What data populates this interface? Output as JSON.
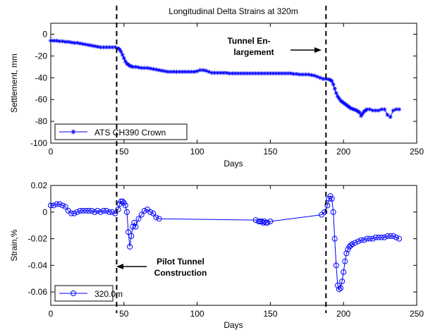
{
  "chart_data": [
    {
      "type": "line",
      "title": "Longitudinal Delta Strains at 320m",
      "xlabel": "Days",
      "ylabel": "Settlement, mm",
      "xlim": [
        0,
        250
      ],
      "ylim": [
        -100,
        10
      ],
      "xticks": [
        0,
        50,
        100,
        150,
        200,
        250
      ],
      "yticks": [
        0,
        -20,
        -40,
        -60,
        -80,
        -100
      ],
      "legend_position": "bottom-left",
      "series": [
        {
          "name": "ATS CH390 Crown",
          "color": "#0000ff",
          "marker": "asterisk",
          "x": [
            0,
            2,
            4,
            6,
            8,
            10,
            12,
            14,
            16,
            18,
            20,
            22,
            24,
            26,
            28,
            30,
            32,
            34,
            36,
            38,
            40,
            42,
            44,
            46,
            47,
            48,
            49,
            50,
            51,
            52,
            53,
            54,
            55,
            56,
            58,
            60,
            62,
            64,
            66,
            68,
            70,
            72,
            74,
            76,
            78,
            80,
            82,
            84,
            86,
            88,
            90,
            92,
            94,
            96,
            98,
            100,
            102,
            104,
            106,
            108,
            110,
            112,
            114,
            116,
            118,
            120,
            122,
            124,
            126,
            128,
            130,
            132,
            134,
            136,
            138,
            140,
            142,
            144,
            146,
            148,
            150,
            152,
            154,
            156,
            158,
            160,
            162,
            164,
            166,
            168,
            170,
            172,
            174,
            176,
            178,
            180,
            182,
            184,
            186,
            188,
            190,
            191,
            192,
            193,
            194,
            195,
            196,
            197,
            198,
            199,
            200,
            201,
            202,
            203,
            204,
            205,
            206,
            207,
            208,
            209,
            210,
            211,
            212,
            213,
            214,
            215,
            216,
            218,
            220,
            222,
            224,
            226,
            228,
            230,
            232,
            234,
            236,
            238
          ],
          "y": [
            -6,
            -6,
            -6,
            -6.5,
            -6.5,
            -7,
            -7,
            -7.5,
            -8,
            -8,
            -8.5,
            -9,
            -9.5,
            -10,
            -10.5,
            -11,
            -11.5,
            -12,
            -12,
            -12,
            -12,
            -12,
            -12,
            -13,
            -14,
            -16,
            -19,
            -22,
            -25,
            -27,
            -28,
            -29,
            -29.5,
            -30,
            -30,
            -30.5,
            -31,
            -31,
            -31,
            -31.5,
            -32,
            -32.5,
            -33,
            -33.5,
            -34,
            -34.5,
            -34.5,
            -34.5,
            -34.5,
            -34.5,
            -34.5,
            -34.5,
            -34.5,
            -34.5,
            -34.5,
            -34,
            -33,
            -33,
            -33.5,
            -34.5,
            -35.5,
            -35.5,
            -35.5,
            -35.5,
            -35.5,
            -35.5,
            -36,
            -36,
            -36,
            -36,
            -36,
            -36,
            -36,
            -36,
            -36,
            -36,
            -36,
            -36,
            -36,
            -36,
            -36,
            -36,
            -36,
            -36,
            -36,
            -36,
            -36,
            -36,
            -36.5,
            -36.5,
            -37,
            -37,
            -37,
            -37,
            -37.5,
            -38,
            -39,
            -40,
            -41,
            -41,
            -41.5,
            -42,
            -43,
            -46,
            -50,
            -54,
            -57,
            -59,
            -61,
            -62,
            -63,
            -64,
            -65,
            -66,
            -67,
            -68,
            -68.5,
            -69,
            -69.5,
            -70,
            -71,
            -72,
            -75,
            -73,
            -71,
            -70,
            -69,
            -69,
            -70,
            -70,
            -70,
            -69,
            -69,
            -74,
            -76,
            -70,
            -69,
            -69
          ]
        }
      ]
    },
    {
      "type": "line",
      "title": "",
      "xlabel": "Days",
      "ylabel": "Strain,%",
      "xlim": [
        0,
        250
      ],
      "ylim": [
        -0.07,
        0.02
      ],
      "xticks": [
        0,
        50,
        100,
        150,
        200,
        250
      ],
      "yticks": [
        0.02,
        0,
        -0.02,
        -0.04,
        -0.06
      ],
      "ytick_labels": [
        "0.02",
        "0",
        "-0.02",
        "-0.04",
        "-0.06"
      ],
      "legend_position": "bottom-left",
      "series": [
        {
          "name": "320.0m",
          "color": "#0000ff",
          "marker": "circle",
          "x": [
            0,
            2,
            4,
            6,
            8,
            10,
            12,
            14,
            16,
            18,
            20,
            22,
            24,
            26,
            28,
            30,
            32,
            34,
            36,
            38,
            40,
            42,
            44,
            46,
            47,
            48,
            49,
            50,
            51,
            52,
            53,
            54,
            55,
            56,
            57,
            58,
            60,
            62,
            64,
            66,
            68,
            70,
            72,
            74,
            140,
            142,
            143,
            144,
            145,
            146,
            147,
            148,
            150,
            185,
            187,
            189,
            190,
            191,
            192,
            193,
            194,
            195,
            196,
            197,
            198,
            199,
            200,
            201,
            202,
            203,
            204,
            205,
            206,
            208,
            210,
            212,
            214,
            216,
            218,
            220,
            222,
            224,
            226,
            228,
            230,
            232,
            234,
            236,
            238
          ],
          "y": [
            0.005,
            0.005,
            0.006,
            0.006,
            0.005,
            0.004,
            0.001,
            -0.001,
            -0.001,
            0.0,
            0.001,
            0.001,
            0.001,
            0.001,
            0.001,
            0.0,
            0.001,
            0.0,
            0.001,
            0.001,
            0.0,
            0.0,
            -0.001,
            0.002,
            0.006,
            0.008,
            0.008,
            0.007,
            0.005,
            0.0,
            -0.015,
            -0.026,
            -0.018,
            -0.011,
            -0.008,
            -0.011,
            -0.005,
            -0.002,
            0.001,
            0.002,
            0.0,
            -0.001,
            -0.004,
            -0.005,
            -0.006,
            -0.007,
            -0.007,
            -0.007,
            -0.008,
            -0.007,
            -0.008,
            -0.008,
            -0.007,
            -0.002,
            0.0,
            0.005,
            0.01,
            0.012,
            0.01,
            0.0,
            -0.02,
            -0.04,
            -0.055,
            -0.058,
            -0.057,
            -0.052,
            -0.045,
            -0.037,
            -0.031,
            -0.028,
            -0.026,
            -0.025,
            -0.024,
            -0.023,
            -0.022,
            -0.021,
            -0.021,
            -0.02,
            -0.02,
            -0.02,
            -0.019,
            -0.019,
            -0.019,
            -0.019,
            -0.018,
            -0.018,
            -0.018,
            -0.019,
            -0.02
          ]
        }
      ]
    }
  ],
  "annotations": {
    "tunnel_enlargement_line1": "Tunnel En-",
    "tunnel_enlargement_line2": "largement",
    "pilot_tunnel_line1": "Pilot Tunnel",
    "pilot_tunnel_line2": "Construction",
    "pilot_day": 45,
    "enlargement_day": 188
  }
}
